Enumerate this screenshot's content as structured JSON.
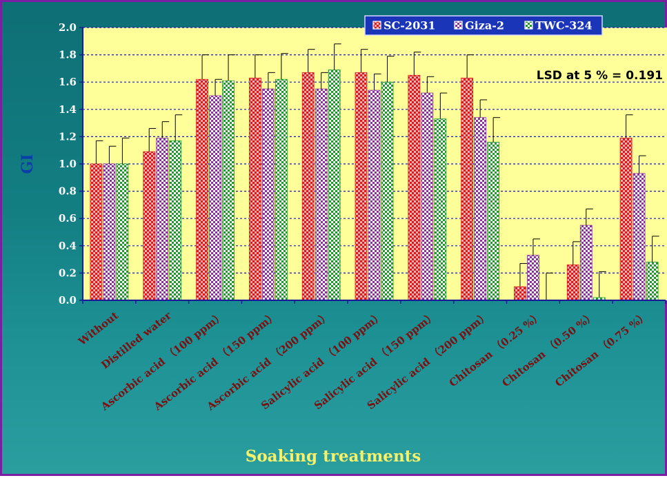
{
  "chart_data": {
    "type": "bar",
    "title": "",
    "ylabel": "GI",
    "xlabel": "Soaking treatments",
    "ylim": [
      0,
      2.0
    ],
    "yticks": [
      "0.0",
      "0.2",
      "0.4",
      "0.6",
      "0.8",
      "1.0",
      "1.2",
      "1.4",
      "1.6",
      "1.8",
      "2.0"
    ],
    "grid": true,
    "legend_position": "top-right",
    "annotation": "LSD at 5 % = 0.191",
    "categories": [
      "Without",
      "Distilled water",
      "Ascorbic acid （100 ppm）",
      "Ascorbic acid （150 ppm）",
      "Ascorbic acid （200 ppm）",
      "Salicylic acid （100 ppm）",
      "Salicylic acid （150 ppm）",
      "Salicylic acid （200 ppm）",
      "Chitosan （0.25 %）",
      "Chitosan （0.50 %）",
      "Chitosan （0.75 %）"
    ],
    "series": [
      {
        "name": "SC-2031",
        "color": "#e02020",
        "values": [
          1.0,
          1.09,
          1.62,
          1.63,
          1.67,
          1.67,
          1.65,
          1.63,
          0.1,
          0.26,
          1.19
        ],
        "errors": [
          0.17,
          0.17,
          0.18,
          0.17,
          0.17,
          0.17,
          0.17,
          0.17,
          0.17,
          0.17,
          0.17
        ]
      },
      {
        "name": "Giza-2",
        "color": "#8e2fa0",
        "values": [
          1.0,
          1.19,
          1.5,
          1.55,
          1.55,
          1.54,
          1.52,
          1.34,
          0.33,
          0.55,
          0.93
        ],
        "errors": [
          0.13,
          0.12,
          0.12,
          0.12,
          0.12,
          0.12,
          0.12,
          0.13,
          0.12,
          0.12,
          0.13
        ]
      },
      {
        "name": "TWC-324",
        "color": "#1f9a2a",
        "values": [
          1.0,
          1.17,
          1.61,
          1.62,
          1.69,
          1.6,
          1.33,
          1.16,
          0.0,
          0.02,
          0.28
        ],
        "errors": [
          0.19,
          0.19,
          0.19,
          0.19,
          0.19,
          0.19,
          0.19,
          0.18,
          0.2,
          0.19,
          0.19
        ]
      }
    ]
  },
  "colors": {
    "plot_background": "#ffff99",
    "axis_label": "#0b3fa8",
    "category_label": "#7a1010",
    "xlabel_text": "#f6f16a",
    "legend_background": "#1a35b8"
  }
}
